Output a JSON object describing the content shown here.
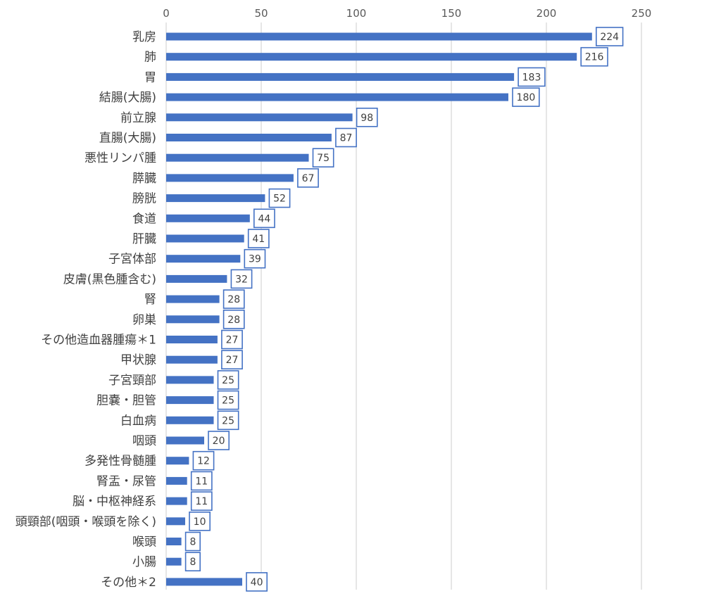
{
  "chart_data": {
    "type": "bar",
    "orientation": "horizontal",
    "categories": [
      "乳房",
      "肺",
      "胃",
      "結腸(大腸)",
      "前立腺",
      "直腸(大腸)",
      "悪性リンパ腫",
      "膵臓",
      "膀胱",
      "食道",
      "肝臓",
      "子宮体部",
      "皮膚(黒色腫含む)",
      "腎",
      "卵巣",
      "その他造血器腫瘍＊1",
      "甲状腺",
      "子宮頸部",
      "胆嚢・胆管",
      "白血病",
      "咽頭",
      "多発性骨髄腫",
      "腎盂・尿管",
      "脳・中枢神経系",
      "頭頸部(咽頭・喉頭を除く)",
      "喉頭",
      "小腸",
      "その他＊2"
    ],
    "values": [
      224,
      216,
      183,
      180,
      98,
      87,
      75,
      67,
      52,
      44,
      41,
      39,
      32,
      28,
      28,
      27,
      27,
      25,
      25,
      25,
      20,
      12,
      11,
      11,
      10,
      8,
      8,
      40
    ],
    "x_ticks": [
      0,
      50,
      100,
      150,
      200,
      250
    ],
    "xlim": [
      0,
      250
    ],
    "x_axis_position": "top",
    "grid": true,
    "data_labels": true,
    "bar_color": "#4472c4",
    "label_border_color": "#4472c4",
    "title": "",
    "xlabel": "",
    "ylabel": ""
  }
}
